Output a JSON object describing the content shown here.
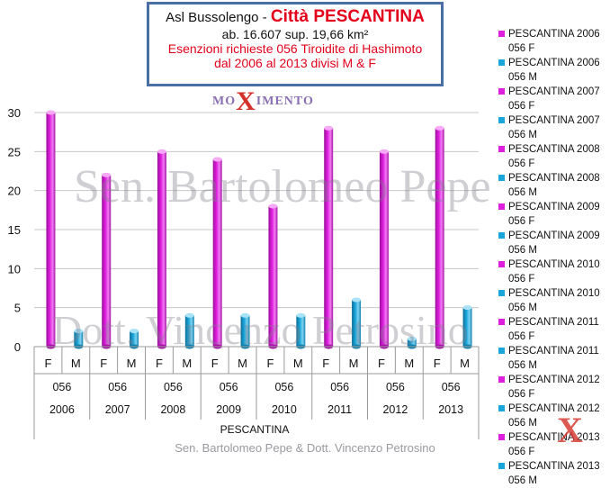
{
  "title": {
    "prefix": "Asl Bussolengo - ",
    "city": "Città PESCANTINA",
    "line2": "ab. 16.607 sup. 19,66 km²",
    "line3": "Esenzioni richieste 056 Tiroidite di Hashimoto",
    "line4": "dal 2006 al 2013 divisi  M & F"
  },
  "watermarks": {
    "logo_pre": "MO",
    "logo_x": "X",
    "logo_post": "IMENTO",
    "text1": "Sen. Bartolomeo Pepe",
    "text2": "Dott. Vincenzo Petrosino",
    "corner": "X"
  },
  "footer": "Sen. Bartolomeo Pepe &  Dott. Vincenzo Petrosino",
  "colors": {
    "F": "#e01ee0",
    "M": "#1aa7dc",
    "title_red": "#e3001b",
    "border": "#4a6fa5"
  },
  "chart_data": {
    "type": "bar",
    "ylim": [
      0,
      30
    ],
    "yticks": [
      0,
      5,
      10,
      15,
      20,
      25,
      30
    ],
    "xaxis_title": "PESCANTINA",
    "code": "056",
    "years": [
      "2006",
      "2007",
      "2008",
      "2009",
      "2010",
      "2011",
      "2012",
      "2013"
    ],
    "sexes": [
      "F",
      "M"
    ],
    "values": {
      "F": [
        30,
        22,
        25,
        24,
        18,
        28,
        25,
        28
      ],
      "M": [
        2,
        2,
        4,
        4,
        4,
        6,
        1,
        5
      ]
    },
    "legend": [
      {
        "l1": "PESCANTINA 2006",
        "l2": "056 F",
        "sex": "F"
      },
      {
        "l1": "PESCANTINA 2006",
        "l2": "056 M",
        "sex": "M"
      },
      {
        "l1": "PESCANTINA 2007",
        "l2": "056 F",
        "sex": "F"
      },
      {
        "l1": "PESCANTINA 2007",
        "l2": "056 M",
        "sex": "M"
      },
      {
        "l1": "PESCANTINA 2008",
        "l2": "056 F",
        "sex": "F"
      },
      {
        "l1": "PESCANTINA 2008",
        "l2": "056 M",
        "sex": "M"
      },
      {
        "l1": "PESCANTINA 2009",
        "l2": "056 F",
        "sex": "F"
      },
      {
        "l1": "PESCANTINA 2009",
        "l2": "056 M",
        "sex": "M"
      },
      {
        "l1": "PESCANTINA 2010",
        "l2": "056 F",
        "sex": "F"
      },
      {
        "l1": "PESCANTINA 2010",
        "l2": "056 M",
        "sex": "M"
      },
      {
        "l1": "PESCANTINA 2011",
        "l2": "056 F",
        "sex": "F"
      },
      {
        "l1": "PESCANTINA 2011",
        "l2": "056 M",
        "sex": "M"
      },
      {
        "l1": "PESCANTINA 2012",
        "l2": "056 F",
        "sex": "F"
      },
      {
        "l1": "PESCANTINA 2012",
        "l2": "056 M",
        "sex": "M"
      },
      {
        "l1": "PESCANTINA 2013",
        "l2": "056 F",
        "sex": "F"
      },
      {
        "l1": "PESCANTINA 2013",
        "l2": "056 M",
        "sex": "M"
      }
    ]
  }
}
